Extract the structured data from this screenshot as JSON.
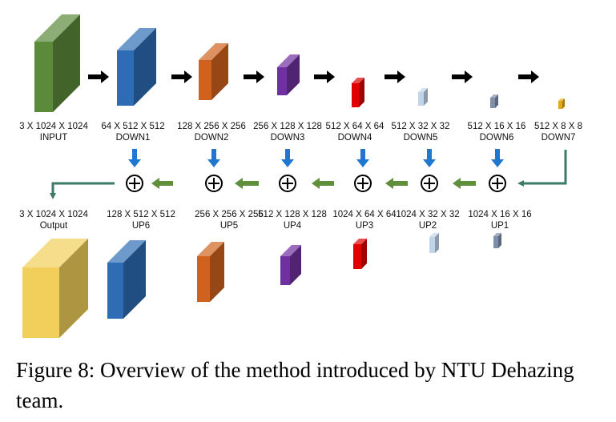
{
  "encoder": [
    {
      "size": "3 X 1024 X 1024",
      "name": "INPUT",
      "color": "#5b8a3a"
    },
    {
      "size": "64 X 512 X 512",
      "name": "DOWN1",
      "color": "#2e6db4"
    },
    {
      "size": "128 X 256 X 256",
      "name": "DOWN2",
      "color": "#d0621d"
    },
    {
      "size": "256 X 128 X 128",
      "name": "DOWN3",
      "color": "#7030a0"
    },
    {
      "size": "512 X 64 X 64",
      "name": "DOWN4",
      "color": "#e00000"
    },
    {
      "size": "512 X 32 X 32",
      "name": "DOWN5",
      "color": "#c2d4ea"
    },
    {
      "size": "512 X 16 X 16",
      "name": "DOWN6",
      "color": "#7f8fa9"
    },
    {
      "size": "512 X 8 X 8",
      "name": "DOWN7",
      "color": "#e6a817"
    }
  ],
  "decoder": [
    {
      "size": "3 X 1024 X 1024",
      "name": "Output",
      "color": "#f2cf5b"
    },
    {
      "size": "128 X 512 X 512",
      "name": "UP6",
      "color": "#2e6db4"
    },
    {
      "size": "256 X 256 X 256",
      "name": "UP5",
      "color": "#d0621d"
    },
    {
      "size": "512 X 128 X 128",
      "name": "UP4",
      "color": "#7030a0"
    },
    {
      "size": "1024 X 64 X 64",
      "name": "UP3",
      "color": "#e00000"
    },
    {
      "size": "1024 X 32 X 32",
      "name": "UP2",
      "color": "#c2d4ea"
    },
    {
      "size": "1024 X 16 X 16",
      "name": "UP1",
      "color": "#7f8fa9"
    }
  ],
  "colors": {
    "forward_arrow": "#000000",
    "skip_arrow": "#1f77d0",
    "up_arrow": "#5f8f3a",
    "connector": "#3d7a6a"
  },
  "caption": "Figure 8: Overview of the method introduced by NTU Dehazing team."
}
